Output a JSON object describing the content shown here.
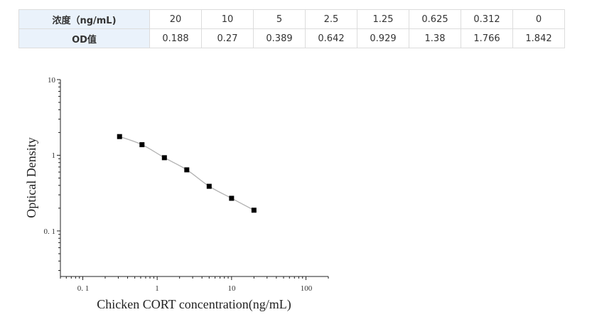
{
  "table": {
    "row1_header": "浓度（ng/mL)",
    "row1": [
      "20",
      "10",
      "5",
      "2.5",
      "1.25",
      "0.625",
      "0.312",
      "0"
    ],
    "row2_header": "OD值",
    "row2": [
      "0.188",
      "0.27",
      "0.389",
      "0.642",
      "0.929",
      "1.38",
      "1.766",
      "1.842"
    ]
  },
  "chart_data": {
    "type": "scatter",
    "x": [
      20,
      10,
      5,
      2.5,
      1.25,
      0.625,
      0.312
    ],
    "y": [
      0.188,
      0.27,
      0.389,
      0.642,
      0.929,
      1.38,
      1.766
    ],
    "xlabel": "Chicken CORT concentration(ng/mL)",
    "ylabel": "Optical Density",
    "xscale": "log",
    "yscale": "log",
    "xlim": [
      0.05,
      200
    ],
    "ylim": [
      0.025,
      10
    ],
    "xticks": [
      "0. 1",
      "1",
      "10",
      "100"
    ],
    "yticks": [
      "10",
      "1",
      "0. 1"
    ],
    "fit_curve": true,
    "grid": false,
    "marker_color": "#000000",
    "curve_color": "#b0b0b0"
  }
}
